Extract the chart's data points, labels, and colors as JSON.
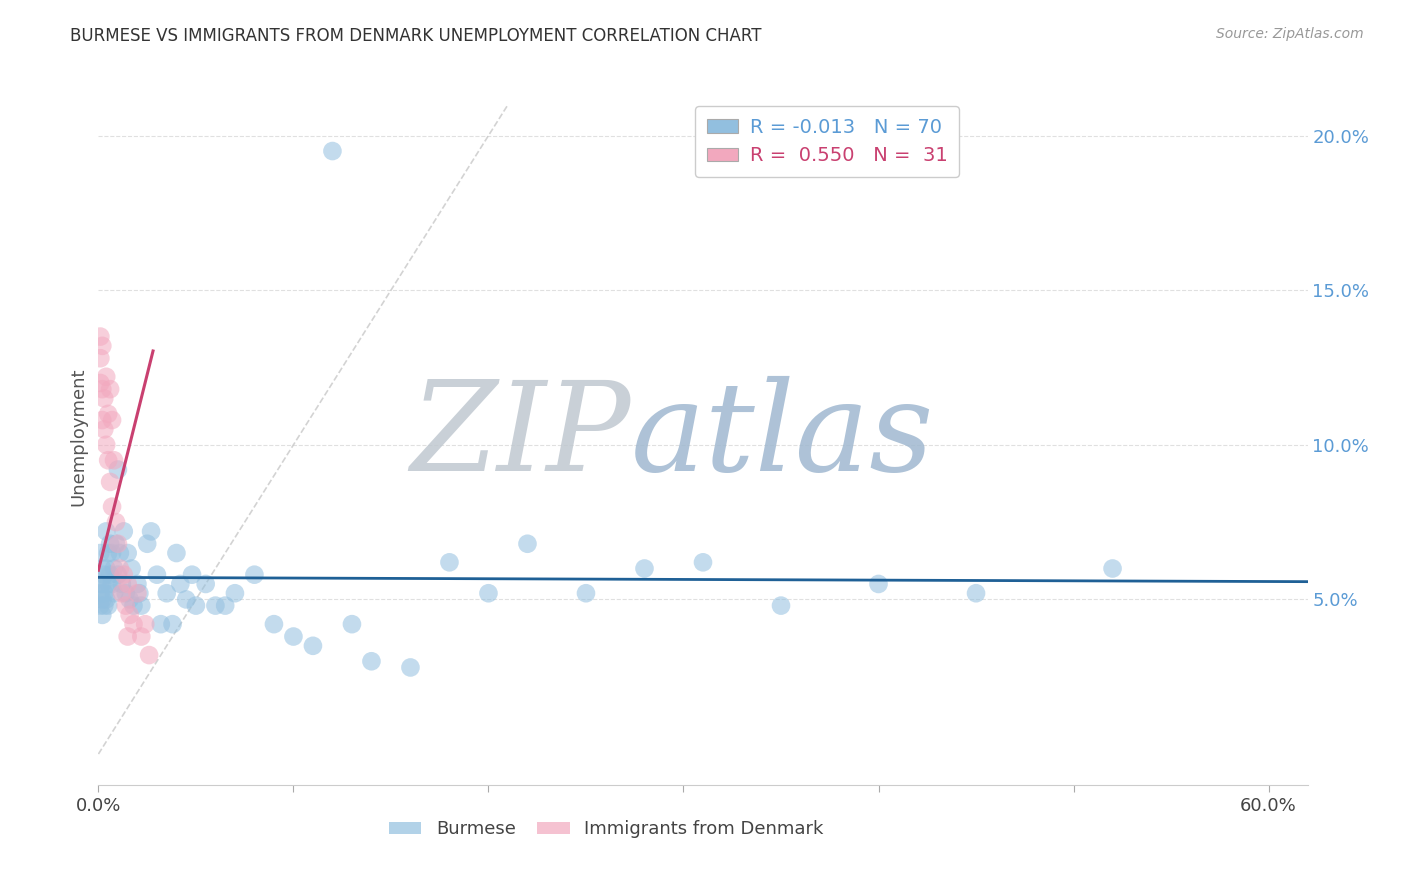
{
  "title": "BURMESE VS IMMIGRANTS FROM DENMARK UNEMPLOYMENT CORRELATION CHART",
  "source": "Source: ZipAtlas.com",
  "ylabel": "Unemployment",
  "xlim": [
    0.0,
    0.62
  ],
  "ylim": [
    -0.01,
    0.215
  ],
  "yticks": [
    0.05,
    0.1,
    0.15,
    0.2
  ],
  "ytick_labels": [
    "5.0%",
    "10.0%",
    "15.0%",
    "20.0%"
  ],
  "xticks": [
    0.0,
    0.1,
    0.2,
    0.3,
    0.4,
    0.5,
    0.6
  ],
  "xtick_show": [
    "0.0%",
    "60.0%"
  ],
  "legend_blue_r": "R = -0.013",
  "legend_blue_n": "N = 70",
  "legend_pink_r": "R =  0.550",
  "legend_pink_n": "N =  31",
  "blue_color": "#92bfdf",
  "pink_color": "#f2a8be",
  "blue_line_color": "#1f6096",
  "pink_line_color": "#c94070",
  "dash_line_color": "#c8c8c8",
  "watermark_zip_color": "#c8d8e8",
  "watermark_atlas_color": "#a8c4dc",
  "title_color": "#333333",
  "axis_tick_color": "#5b9bd5",
  "grid_color": "#e0e0e0",
  "burmese_x": [
    0.001,
    0.001,
    0.001,
    0.001,
    0.002,
    0.002,
    0.002,
    0.002,
    0.003,
    0.003,
    0.003,
    0.004,
    0.004,
    0.004,
    0.005,
    0.005,
    0.005,
    0.006,
    0.006,
    0.007,
    0.007,
    0.008,
    0.008,
    0.009,
    0.01,
    0.01,
    0.011,
    0.012,
    0.013,
    0.014,
    0.015,
    0.016,
    0.017,
    0.018,
    0.02,
    0.021,
    0.022,
    0.025,
    0.027,
    0.03,
    0.032,
    0.035,
    0.038,
    0.04,
    0.042,
    0.045,
    0.048,
    0.05,
    0.055,
    0.06,
    0.065,
    0.07,
    0.08,
    0.09,
    0.1,
    0.11,
    0.12,
    0.13,
    0.14,
    0.16,
    0.18,
    0.2,
    0.22,
    0.25,
    0.28,
    0.31,
    0.35,
    0.4,
    0.45,
    0.52
  ],
  "burmese_y": [
    0.065,
    0.055,
    0.052,
    0.048,
    0.06,
    0.055,
    0.05,
    0.045,
    0.058,
    0.052,
    0.048,
    0.072,
    0.06,
    0.05,
    0.065,
    0.055,
    0.048,
    0.068,
    0.058,
    0.065,
    0.055,
    0.06,
    0.052,
    0.068,
    0.092,
    0.058,
    0.065,
    0.055,
    0.072,
    0.052,
    0.065,
    0.05,
    0.06,
    0.048,
    0.055,
    0.052,
    0.048,
    0.068,
    0.072,
    0.058,
    0.042,
    0.052,
    0.042,
    0.065,
    0.055,
    0.05,
    0.058,
    0.048,
    0.055,
    0.048,
    0.048,
    0.052,
    0.058,
    0.042,
    0.038,
    0.035,
    0.195,
    0.042,
    0.03,
    0.028,
    0.062,
    0.052,
    0.068,
    0.052,
    0.06,
    0.062,
    0.048,
    0.055,
    0.052,
    0.06
  ],
  "denmark_x": [
    0.001,
    0.001,
    0.001,
    0.002,
    0.002,
    0.002,
    0.003,
    0.003,
    0.004,
    0.004,
    0.005,
    0.005,
    0.006,
    0.006,
    0.007,
    0.007,
    0.008,
    0.009,
    0.01,
    0.011,
    0.012,
    0.013,
    0.014,
    0.015,
    0.016,
    0.018,
    0.02,
    0.022,
    0.024,
    0.026,
    0.015
  ],
  "denmark_y": [
    0.135,
    0.128,
    0.12,
    0.132,
    0.118,
    0.108,
    0.115,
    0.105,
    0.122,
    0.1,
    0.11,
    0.095,
    0.118,
    0.088,
    0.108,
    0.08,
    0.095,
    0.075,
    0.068,
    0.06,
    0.052,
    0.058,
    0.048,
    0.055,
    0.045,
    0.042,
    0.052,
    0.038,
    0.042,
    0.032,
    0.038
  ]
}
